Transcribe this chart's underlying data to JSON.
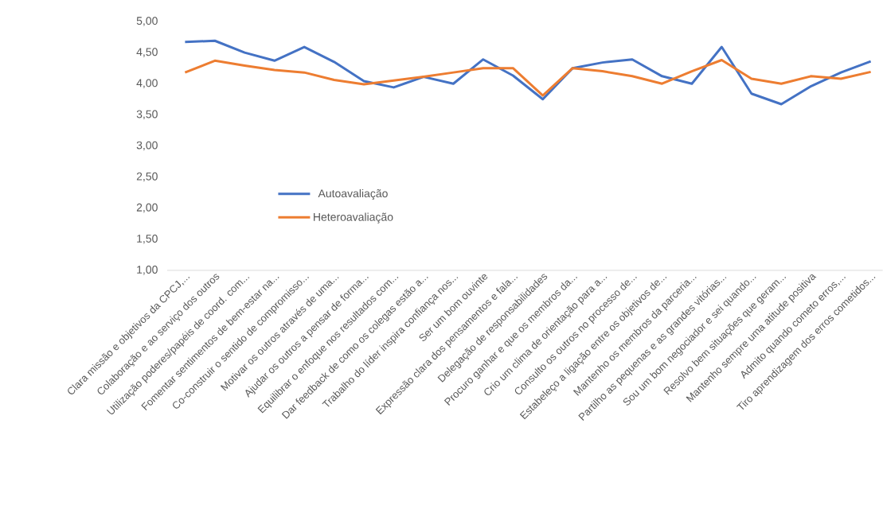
{
  "chart_data": {
    "type": "line",
    "categories": [
      "Clara missão e objetivos da CPCJ,...",
      "Colaboração e ao serviço dos outros",
      "Utilização poderes/papéis de coord. com...",
      "Fomentar sentimentos de bem-estar na...",
      "Co-construir o sentido de compromisso...",
      "Motivar os outros através de uma...",
      "Ajudar os outros a pensar de forma...",
      "Equilibrar o enfoque nos resultados com...",
      "Dar feedback de como os colegas estão a...",
      "Trabalho do líder inspira confiança nos...",
      "Ser um bom ouvinte",
      "Expressão clara dos pensamentos e fala...",
      "Delegação de responsabilidades",
      "Procuro ganhar e que os membros da...",
      "Crio um clima de orientação para a...",
      "Consulto os outros no processo de...",
      "Estabeleço a ligação entre os objetivos de...",
      "Mantenho os membros da parceria...",
      "Partilho as pequenas e as grandes vitórias...",
      "Sou um bom negociador e sei quando...",
      "Resolvo bem situações que geram...",
      "Mantenho sempre uma atitude positiva",
      "Admito quando cometo erros,...",
      "Tiro aprendizagem dos erros cometidos..."
    ],
    "series": [
      {
        "name": "Autoavaliação",
        "color": "#4472c4",
        "values": [
          4.67,
          4.69,
          4.5,
          4.37,
          4.59,
          4.35,
          4.04,
          3.94,
          4.11,
          4.0,
          4.39,
          4.13,
          3.75,
          4.25,
          4.34,
          4.39,
          4.12,
          4.0,
          4.59,
          3.84,
          3.67,
          3.96,
          4.18,
          4.36
        ]
      },
      {
        "name": "Heteroavaliação",
        "color": "#ed7d31",
        "values": [
          4.18,
          4.37,
          4.29,
          4.22,
          4.18,
          4.06,
          3.99,
          4.05,
          4.11,
          4.18,
          4.25,
          4.25,
          3.81,
          4.25,
          4.2,
          4.12,
          4.0,
          4.2,
          4.38,
          4.08,
          4.0,
          4.12,
          4.08,
          4.19
        ]
      }
    ],
    "ylim": [
      1,
      5
    ],
    "yticks": [
      {
        "value": 1,
        "label": "1,00"
      },
      {
        "value": 1.5,
        "label": "1,50"
      },
      {
        "value": 2,
        "label": "2,00"
      },
      {
        "value": 2.5,
        "label": "2,50"
      },
      {
        "value": 3,
        "label": "3,00"
      },
      {
        "value": 3.5,
        "label": "3,50"
      },
      {
        "value": 4,
        "label": "4,00"
      },
      {
        "value": 4.5,
        "label": "4,50"
      },
      {
        "value": 5,
        "label": "5,00"
      }
    ],
    "grid": false,
    "legend": "bottom left",
    "marker": "none",
    "line_style": "solid"
  }
}
